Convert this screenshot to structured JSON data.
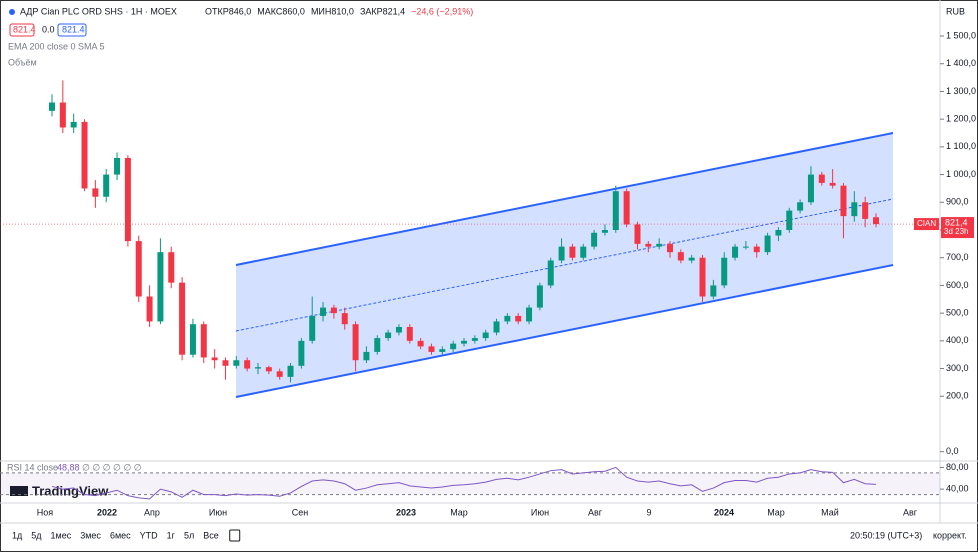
{
  "chart_data": {
    "type": "candlestick",
    "title": "АДР Cian PLC ORD SHS · 1Н · MOEX",
    "ohlc_legend": [
      "ОТКР846,0",
      "МАКС860,0",
      "МИН810,0",
      "ЗАКР821,4",
      "−24,6 (−2,91%)"
    ],
    "quote_boxes": [
      "821.4",
      "0.0",
      "821.4"
    ],
    "indicators": [
      "EMA 200 close 0 SMA 5",
      "Объём"
    ],
    "currency": "RUB",
    "ylim": [
      -30,
      1630
    ],
    "yticks": [
      {
        "value": 1500,
        "label": "1 500,0"
      },
      {
        "value": 1400,
        "label": "1 400,0"
      },
      {
        "value": 1300,
        "label": "1 300,0"
      },
      {
        "value": 1200,
        "label": "1 200,0"
      },
      {
        "value": 1100,
        "label": "1 100,0"
      },
      {
        "value": 1000,
        "label": "1 000,0"
      },
      {
        "value": 900,
        "label": "900,0"
      },
      {
        "value": 800,
        "label": "800,0"
      },
      {
        "value": 700,
        "label": "700,0"
      },
      {
        "value": 600,
        "label": "600,0"
      },
      {
        "value": 500,
        "label": "500,0"
      },
      {
        "value": 400,
        "label": "400,0"
      },
      {
        "value": 300,
        "label": "300,0"
      },
      {
        "value": 200,
        "label": "200,0"
      },
      {
        "value": 0,
        "label": "0,0"
      }
    ],
    "up_color": "#089981",
    "down_color": "#f23645",
    "series": [
      {
        "name": "CIAN",
        "values": [
          [
            1230,
            1290,
            1210,
            1260
          ],
          [
            1260,
            1340,
            1150,
            1170
          ],
          [
            1170,
            1220,
            1150,
            1190
          ],
          [
            1190,
            1200,
            940,
            950
          ],
          [
            950,
            980,
            880,
            920
          ],
          [
            920,
            1020,
            900,
            1000
          ],
          [
            1000,
            1080,
            980,
            1060
          ],
          [
            1060,
            1070,
            740,
            760
          ],
          [
            760,
            780,
            540,
            560
          ],
          [
            560,
            600,
            450,
            470
          ],
          [
            470,
            770,
            460,
            720
          ],
          [
            720,
            740,
            590,
            610
          ],
          [
            610,
            630,
            330,
            350
          ],
          [
            350,
            480,
            340,
            460
          ],
          [
            460,
            470,
            320,
            340
          ],
          [
            340,
            370,
            300,
            330
          ],
          [
            330,
            340,
            260,
            310
          ],
          [
            310,
            345,
            300,
            330
          ],
          [
            330,
            340,
            290,
            300
          ],
          [
            300,
            320,
            280,
            305
          ],
          [
            305,
            310,
            280,
            290
          ],
          [
            290,
            300,
            260,
            270
          ],
          [
            270,
            320,
            250,
            310
          ],
          [
            310,
            410,
            300,
            400
          ],
          [
            400,
            560,
            390,
            490
          ],
          [
            490,
            540,
            470,
            520
          ],
          [
            520,
            530,
            480,
            500
          ],
          [
            500,
            520,
            440,
            460
          ],
          [
            460,
            470,
            290,
            330
          ],
          [
            330,
            380,
            320,
            360
          ],
          [
            360,
            420,
            350,
            410
          ],
          [
            410,
            440,
            400,
            430
          ],
          [
            430,
            460,
            420,
            450
          ],
          [
            450,
            460,
            390,
            400
          ],
          [
            400,
            410,
            370,
            380
          ],
          [
            380,
            390,
            350,
            360
          ],
          [
            360,
            380,
            350,
            370
          ],
          [
            370,
            400,
            360,
            390
          ],
          [
            390,
            410,
            380,
            400
          ],
          [
            400,
            420,
            390,
            410
          ],
          [
            410,
            440,
            400,
            430
          ],
          [
            430,
            480,
            420,
            470
          ],
          [
            470,
            500,
            460,
            490
          ],
          [
            490,
            500,
            460,
            470
          ],
          [
            470,
            530,
            460,
            520
          ],
          [
            520,
            610,
            510,
            600
          ],
          [
            600,
            700,
            590,
            690
          ],
          [
            690,
            770,
            680,
            740
          ],
          [
            740,
            750,
            690,
            700
          ],
          [
            700,
            750,
            690,
            740
          ],
          [
            740,
            800,
            730,
            790
          ],
          [
            790,
            820,
            780,
            800
          ],
          [
            800,
            960,
            790,
            940
          ],
          [
            940,
            950,
            810,
            820
          ],
          [
            820,
            830,
            730,
            750
          ],
          [
            750,
            760,
            720,
            740
          ],
          [
            740,
            770,
            730,
            750
          ],
          [
            750,
            760,
            700,
            720
          ],
          [
            720,
            730,
            680,
            690
          ],
          [
            690,
            710,
            680,
            700
          ],
          [
            700,
            710,
            540,
            560
          ],
          [
            560,
            620,
            550,
            600
          ],
          [
            600,
            720,
            590,
            700
          ],
          [
            700,
            750,
            690,
            740
          ],
          [
            740,
            760,
            730,
            740
          ],
          [
            740,
            750,
            700,
            720
          ],
          [
            720,
            790,
            710,
            780
          ],
          [
            780,
            810,
            760,
            800
          ],
          [
            800,
            880,
            790,
            870
          ],
          [
            870,
            910,
            860,
            900
          ],
          [
            900,
            1030,
            890,
            1000
          ],
          [
            1000,
            1010,
            960,
            970
          ],
          [
            970,
            1020,
            950,
            960
          ],
          [
            960,
            970,
            770,
            850
          ],
          [
            850,
            940,
            830,
            900
          ],
          [
            900,
            920,
            810,
            840
          ],
          [
            846,
            860,
            810,
            821.4
          ]
        ]
      }
    ],
    "last_price": {
      "value": 821.4,
      "label": "821,4"
    },
    "countdown": "3d 23h",
    "time_labels": [
      "Ноя",
      "2022",
      "Апр",
      "Июн",
      "Сен",
      "2023",
      "Мар",
      "Июн",
      "Авг",
      "9",
      "2024",
      "Мар",
      "Май",
      "Авг"
    ],
    "rsi": {
      "title": "RSI 14 close",
      "value_text": "48,88",
      "extra": "∅ ∅ ∅ ∅ ∅ ∅",
      "color": "#7e57c2",
      "ylim": [
        20,
        90
      ],
      "yticks": [
        {
          "value": 80,
          "label": "80,00"
        },
        {
          "value": 40,
          "label": "40,00"
        }
      ],
      "bands": [
        70,
        30
      ],
      "values": [
        45,
        40,
        42,
        30,
        28,
        33,
        38,
        28,
        24,
        22,
        40,
        35,
        25,
        38,
        30,
        30,
        28,
        31,
        29,
        30,
        29,
        27,
        33,
        45,
        55,
        57,
        55,
        50,
        38,
        42,
        48,
        50,
        52,
        46,
        44,
        42,
        44,
        47,
        48,
        50,
        53,
        58,
        60,
        57,
        62,
        68,
        74,
        76,
        68,
        70,
        72,
        73,
        80,
        62,
        55,
        53,
        55,
        50,
        46,
        48,
        36,
        42,
        52,
        56,
        56,
        53,
        60,
        62,
        68,
        70,
        76,
        72,
        71,
        52,
        58,
        50,
        48.88
      ]
    },
    "brand": "TradingView",
    "ranges": [
      "1д",
      "5д",
      "1мес",
      "3мес",
      "6мес",
      "YTD",
      "1г",
      "5л",
      "Все"
    ],
    "clock": "20:50:19 (UTC+3)",
    "adjust": "коррект."
  }
}
